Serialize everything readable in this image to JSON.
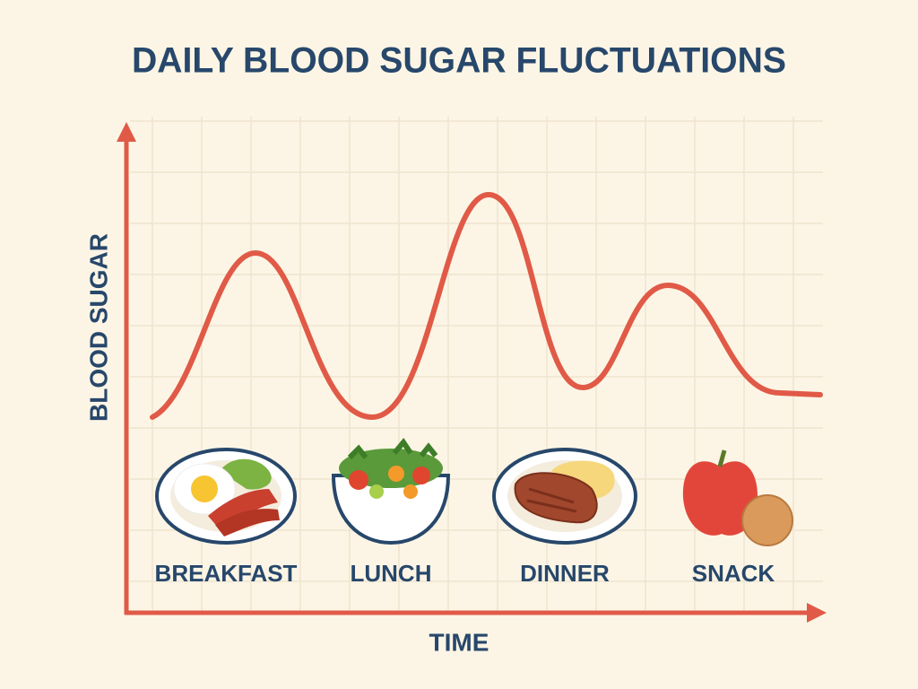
{
  "title": "DAILY BLOOD SUGAR FLUCTUATIONS",
  "y_axis_label": "BLOOD SUGAR",
  "x_axis_label": "TIME",
  "meals": [
    {
      "label": "BREAKFAST"
    },
    {
      "label": "LUNCH"
    },
    {
      "label": "DINNER"
    },
    {
      "label": "SNACK"
    }
  ]
}
